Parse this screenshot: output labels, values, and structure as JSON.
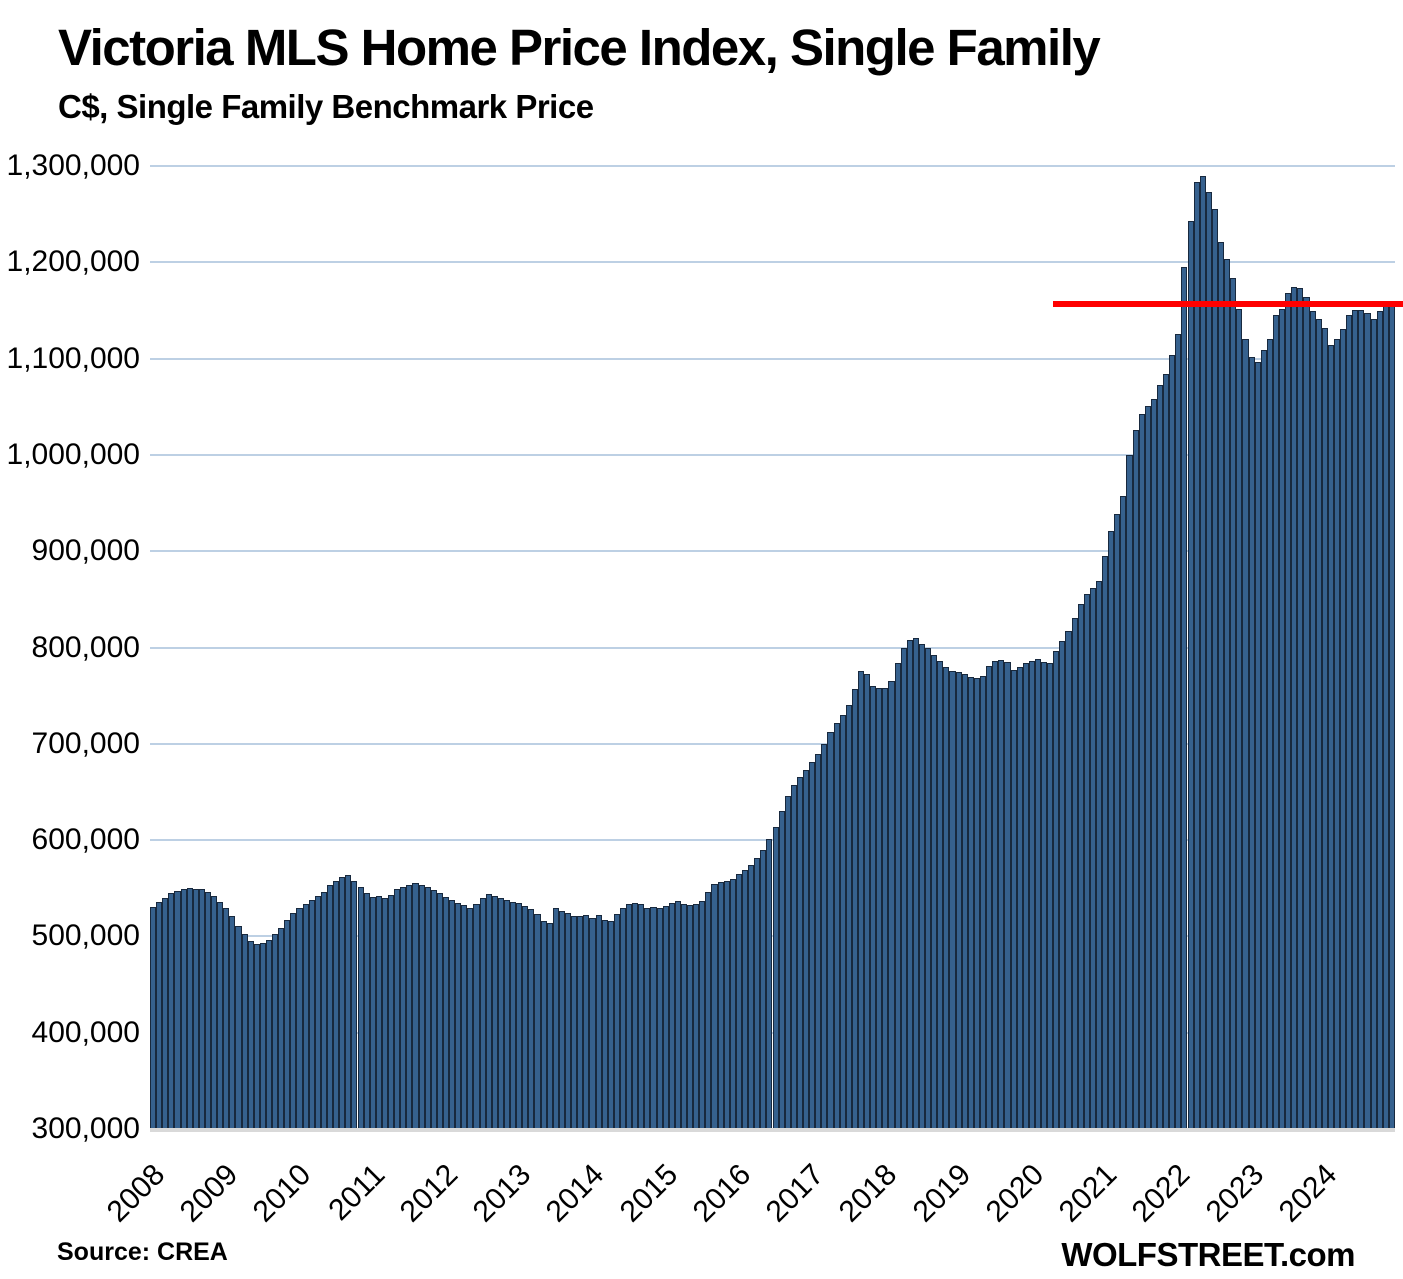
{
  "header": {
    "title": "Victoria MLS Home Price Index, Single Family",
    "subtitle": "C$, Single Family Benchmark Price"
  },
  "footer": {
    "source": "Source: CREA",
    "branding": "WOLFSTREET.com"
  },
  "chart_data": {
    "type": "bar",
    "title": "Victoria MLS Home Price Index, Single Family",
    "subtitle": "C$, Single Family Benchmark Price",
    "unit": "C$",
    "frequency": "monthly",
    "start": "2008-01",
    "end": "2024-12",
    "xlabel": "",
    "ylabel": "Single Family Benchmark Price, C$",
    "ylim": [
      300000,
      1300000
    ],
    "y_ticks": [
      300000,
      400000,
      500000,
      600000,
      700000,
      800000,
      900000,
      1000000,
      1100000,
      1200000,
      1300000
    ],
    "grid": true,
    "x_year_labels": [
      "2008",
      "2009",
      "2010",
      "2011",
      "2012",
      "2013",
      "2014",
      "2015",
      "2016",
      "2017",
      "2018",
      "2019",
      "2020",
      "2021",
      "2022",
      "2023",
      "2024"
    ],
    "values": [
      531000,
      536000,
      540000,
      545000,
      547000,
      549000,
      550000,
      549000,
      549000,
      546000,
      542000,
      536000,
      530000,
      521000,
      511000,
      502000,
      495000,
      492000,
      493000,
      496000,
      502000,
      509000,
      517000,
      524000,
      529000,
      534000,
      538000,
      542000,
      546000,
      553000,
      558000,
      562000,
      564000,
      558000,
      551000,
      545000,
      541000,
      542000,
      540000,
      543000,
      549000,
      551000,
      553000,
      555000,
      553000,
      551000,
      548000,
      545000,
      541000,
      538000,
      535000,
      533000,
      530000,
      534000,
      540000,
      544000,
      542000,
      540000,
      538000,
      536000,
      535000,
      532000,
      528000,
      523000,
      516000,
      514000,
      529000,
      526000,
      524000,
      521000,
      521000,
      522000,
      519000,
      522000,
      517000,
      516000,
      523000,
      530000,
      534000,
      535000,
      534000,
      530000,
      531000,
      530000,
      532000,
      535000,
      537000,
      534000,
      533000,
      534000,
      537000,
      546000,
      554000,
      556000,
      558000,
      560000,
      565000,
      569000,
      574000,
      581000,
      590000,
      601000,
      614000,
      630000,
      646000,
      657000,
      666000,
      673000,
      681000,
      689000,
      700000,
      712000,
      722000,
      730000,
      740000,
      757000,
      776000,
      772000,
      760000,
      758000,
      758000,
      765000,
      784000,
      800000,
      808000,
      810000,
      804000,
      800000,
      792000,
      786000,
      780000,
      776000,
      775000,
      772000,
      769000,
      768000,
      770000,
      781000,
      786000,
      787000,
      785000,
      777000,
      780000,
      784000,
      786000,
      788000,
      785000,
      784000,
      796000,
      807000,
      817000,
      831000,
      845000,
      856000,
      862000,
      869000,
      895000,
      921000,
      939000,
      957000,
      1000000,
      1026000,
      1042000,
      1051000,
      1058000,
      1073000,
      1084000,
      1104000,
      1126000,
      1195000,
      1243000,
      1283000,
      1290000,
      1273000,
      1255000,
      1221000,
      1203000,
      1184000,
      1152000,
      1120000,
      1102000,
      1097000,
      1109000,
      1120000,
      1145000,
      1152000,
      1168000,
      1174000,
      1173000,
      1164000,
      1149000,
      1141000,
      1132000,
      1114000,
      1120000,
      1131000,
      1145000,
      1151000,
      1150000,
      1147000,
      1141000,
      1149000,
      1156000,
      1157000
    ],
    "reference_line": {
      "value": 1157000,
      "color": "#ff0000",
      "start_month_index": 148,
      "extends_to_right_edge": true
    },
    "colors": {
      "bar_fill": "#36618e",
      "bar_border": "#18293e",
      "gridline": "#bdd0e4",
      "axis_line": "#d9d9d9",
      "background": "#ffffff",
      "text": "#000000"
    },
    "legend": null
  }
}
